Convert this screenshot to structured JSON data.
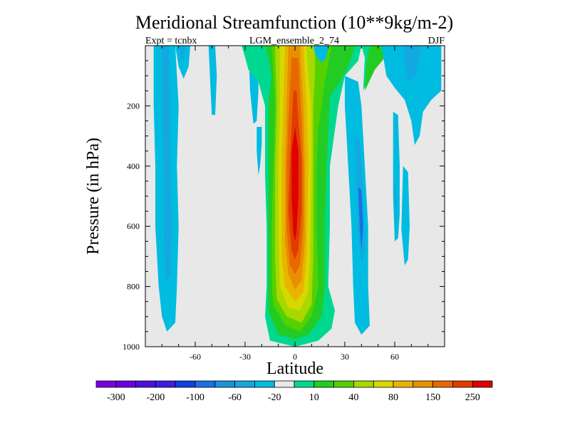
{
  "chart_data": {
    "type": "heatmap",
    "title": "Meridional Streamfunction (10**9kg/m-2)",
    "subtitle_left": "Expt = tcnbx",
    "subtitle_center": "LGM_ensemble_2_74",
    "subtitle_right": "DJF",
    "xlabel": "Latitude",
    "ylabel": "Pressure (in hPa)",
    "xlim": [
      -90,
      90
    ],
    "ylim": [
      0,
      1000
    ],
    "y_inverted": true,
    "x_ticks": [
      -60,
      -30,
      0,
      30,
      60
    ],
    "x_tick_labels": [
      "-60",
      "-30",
      "0",
      "30",
      "60"
    ],
    "y_ticks": [
      200,
      400,
      600,
      800,
      1000
    ],
    "y_tick_labels": [
      "200",
      "400",
      "600",
      "800",
      "1000"
    ],
    "colorbar": {
      "colors": [
        "#7b00e0",
        "#6a00e6",
        "#4d10e0",
        "#3a20e0",
        "#1040e0",
        "#1a70e0",
        "#1f90dc",
        "#14a8e0",
        "#00bce0",
        "#e8e8e8",
        "#00d890",
        "#22cc22",
        "#55d000",
        "#a8d800",
        "#d8d800",
        "#e8b400",
        "#e89000",
        "#e86800",
        "#e03c00",
        "#e00000"
      ],
      "labels": [
        "-300",
        "-200",
        "-100",
        "-60",
        "-20",
        "10",
        "40",
        "80",
        "150",
        "250"
      ]
    },
    "regions": [
      {
        "name": "sh-cell-outer",
        "level": -20,
        "color": "#00bce0",
        "points": [
          [
            -85,
            0
          ],
          [
            -72,
            0
          ],
          [
            -70,
            200
          ],
          [
            -71,
            400
          ],
          [
            -70,
            600
          ],
          [
            -71,
            800
          ],
          [
            -72,
            920
          ],
          [
            -77,
            950
          ],
          [
            -80,
            900
          ],
          [
            -82,
            800
          ],
          [
            -84,
            600
          ],
          [
            -84,
            400
          ],
          [
            -85,
            200
          ]
        ]
      },
      {
        "name": "sh-cell-inner",
        "level": -60,
        "color": "#14a8e0",
        "points": [
          [
            -80,
            0
          ],
          [
            -76,
            0
          ],
          [
            -75,
            200
          ],
          [
            -75,
            400
          ],
          [
            -74,
            600
          ],
          [
            -75,
            760
          ],
          [
            -78,
            780
          ],
          [
            -79,
            600
          ],
          [
            -79,
            400
          ],
          [
            -80,
            200
          ]
        ]
      },
      {
        "name": "sh-upper-cell",
        "level": -20,
        "color": "#00bce0",
        "points": [
          [
            -72,
            0
          ],
          [
            -63,
            0
          ],
          [
            -64,
            70
          ],
          [
            -67,
            110
          ],
          [
            -70,
            70
          ]
        ]
      },
      {
        "name": "sh-upper-cell-inner",
        "level": -60,
        "color": "#14a8e0",
        "points": [
          [
            -70,
            0
          ],
          [
            -66,
            0
          ],
          [
            -67,
            45
          ],
          [
            -69,
            45
          ]
        ]
      },
      {
        "name": "sh-thin-cell",
        "level": -20,
        "color": "#00bce0",
        "points": [
          [
            -52,
            0
          ],
          [
            -48,
            0
          ],
          [
            -47,
            100
          ],
          [
            -48,
            230
          ],
          [
            -50,
            230
          ],
          [
            -51,
            120
          ]
        ]
      },
      {
        "name": "sh-mid-cell",
        "level": -20,
        "color": "#00bce0",
        "points": [
          [
            -28,
            0
          ],
          [
            -22,
            0
          ],
          [
            -22,
            150
          ],
          [
            -23,
            250
          ],
          [
            -25,
            260
          ],
          [
            -27,
            150
          ]
        ]
      },
      {
        "name": "sh-deep-cell",
        "level": -20,
        "color": "#00bce0",
        "points": [
          [
            -23,
            270
          ],
          [
            -20,
            270
          ],
          [
            -20,
            330
          ],
          [
            -21,
            400
          ],
          [
            -22,
            430
          ],
          [
            -23,
            350
          ]
        ]
      },
      {
        "name": "hadley-10",
        "level": 10,
        "color": "#00d890",
        "points": [
          [
            -32,
            0
          ],
          [
            40,
            0
          ],
          [
            38,
            50
          ],
          [
            30,
            100
          ],
          [
            26,
            200
          ],
          [
            21,
            400
          ],
          [
            21,
            600
          ],
          [
            20,
            800
          ],
          [
            24,
            880
          ],
          [
            22,
            940
          ],
          [
            14,
            980
          ],
          [
            0,
            1000
          ],
          [
            -15,
            980
          ],
          [
            -18,
            900
          ],
          [
            -17,
            800
          ],
          [
            -17,
            600
          ],
          [
            -18,
            430
          ],
          [
            -18,
            200
          ],
          [
            -22,
            120
          ],
          [
            -28,
            80
          ]
        ]
      },
      {
        "name": "hadley-40",
        "level": 40,
        "color": "#22cc22",
        "points": [
          [
            -18,
            0
          ],
          [
            36,
            0
          ],
          [
            32,
            70
          ],
          [
            27,
            120
          ],
          [
            21,
            170
          ],
          [
            19,
            400
          ],
          [
            18,
            600
          ],
          [
            18,
            800
          ],
          [
            16,
            900
          ],
          [
            8,
            960
          ],
          [
            0,
            975
          ],
          [
            -10,
            960
          ],
          [
            -16,
            880
          ],
          [
            -16,
            780
          ],
          [
            -16,
            600
          ],
          [
            -16,
            430
          ],
          [
            -16,
            200
          ],
          [
            -14,
            100
          ],
          [
            -16,
            40
          ]
        ]
      },
      {
        "name": "hadley-80",
        "level": 80,
        "color": "#55d000",
        "points": [
          [
            -14,
            0
          ],
          [
            22,
            0
          ],
          [
            18,
            120
          ],
          [
            14,
            280
          ],
          [
            13,
            400
          ],
          [
            13,
            600
          ],
          [
            14,
            800
          ],
          [
            10,
            900
          ],
          [
            3,
            950
          ],
          [
            -6,
            930
          ],
          [
            -13,
            860
          ],
          [
            -14,
            800
          ],
          [
            -14,
            600
          ],
          [
            -13,
            400
          ],
          [
            -12,
            200
          ]
        ]
      },
      {
        "name": "hadley-120",
        "level": 120,
        "color": "#a8d800",
        "points": [
          [
            -12,
            0
          ],
          [
            12,
            0
          ],
          [
            12,
            100
          ],
          [
            11,
            200
          ],
          [
            11,
            400
          ],
          [
            11,
            700
          ],
          [
            10,
            860
          ],
          [
            4,
            920
          ],
          [
            -5,
            900
          ],
          [
            -11,
            840
          ],
          [
            -12,
            700
          ],
          [
            -12,
            400
          ],
          [
            -11,
            200
          ]
        ]
      },
      {
        "name": "hadley-150",
        "level": 150,
        "color": "#d8d800",
        "points": [
          [
            -9,
            0
          ],
          [
            7,
            0
          ],
          [
            8,
            100
          ],
          [
            10,
            200
          ],
          [
            10,
            400
          ],
          [
            9,
            700
          ],
          [
            8,
            820
          ],
          [
            3,
            880
          ],
          [
            -4,
            870
          ],
          [
            -9,
            800
          ],
          [
            -10,
            600
          ],
          [
            -10,
            400
          ],
          [
            -9,
            200
          ]
        ]
      },
      {
        "name": "hadley-180",
        "level": 180,
        "color": "#e8b400",
        "points": [
          [
            -6,
            0
          ],
          [
            5,
            0
          ],
          [
            6,
            100
          ],
          [
            7,
            200
          ],
          [
            8,
            400
          ],
          [
            7,
            700
          ],
          [
            5,
            820
          ],
          [
            0,
            850
          ],
          [
            -6,
            800
          ],
          [
            -8,
            700
          ],
          [
            -8,
            400
          ],
          [
            -7,
            200
          ]
        ]
      },
      {
        "name": "hadley-210",
        "level": 210,
        "color": "#e89000",
        "points": [
          [
            -4,
            0
          ],
          [
            3,
            0
          ],
          [
            4,
            100
          ],
          [
            5,
            200
          ],
          [
            6,
            400
          ],
          [
            6,
            650
          ],
          [
            4,
            780
          ],
          [
            0,
            810
          ],
          [
            -4,
            760
          ],
          [
            -6,
            650
          ],
          [
            -6,
            400
          ],
          [
            -5,
            200
          ]
        ]
      },
      {
        "name": "hadley-250",
        "level": 250,
        "color": "#e86800",
        "points": [
          [
            -2,
            40
          ],
          [
            2,
            40
          ],
          [
            3,
            150
          ],
          [
            4,
            250
          ],
          [
            5,
            400
          ],
          [
            5,
            600
          ],
          [
            3,
            730
          ],
          [
            0,
            760
          ],
          [
            -3,
            730
          ],
          [
            -5,
            600
          ],
          [
            -5,
            400
          ],
          [
            -4,
            250
          ]
        ]
      },
      {
        "name": "hadley-280",
        "level": 280,
        "color": "#e03c00",
        "points": [
          [
            -1,
            150
          ],
          [
            1,
            150
          ],
          [
            2,
            250
          ],
          [
            4,
            380
          ],
          [
            4,
            550
          ],
          [
            2,
            680
          ],
          [
            0,
            710
          ],
          [
            -2,
            680
          ],
          [
            -4,
            550
          ],
          [
            -3,
            380
          ]
        ]
      },
      {
        "name": "hadley-core",
        "level": 300,
        "color": "#e00000",
        "points": [
          [
            0,
            270
          ],
          [
            2,
            350
          ],
          [
            2,
            500
          ],
          [
            1,
            620
          ],
          [
            0,
            650
          ],
          [
            -1,
            620
          ],
          [
            -2,
            500
          ],
          [
            -2,
            350
          ]
        ]
      },
      {
        "name": "nh-upper-cell",
        "level": 10,
        "color": "#00d890",
        "points": [
          [
            40,
            0
          ],
          [
            60,
            0
          ],
          [
            50,
            60
          ],
          [
            45,
            100
          ],
          [
            41,
            150
          ],
          [
            42,
            40
          ]
        ]
      },
      {
        "name": "nh-upper-cell-green",
        "level": 40,
        "color": "#22cc22",
        "points": [
          [
            45,
            0
          ],
          [
            60,
            0
          ],
          [
            48,
            80
          ],
          [
            42,
            150
          ],
          [
            43,
            60
          ]
        ]
      },
      {
        "name": "nh-cell-outer",
        "level": -20,
        "color": "#00bce0",
        "points": [
          [
            30,
            100
          ],
          [
            38,
            120
          ],
          [
            40,
            200
          ],
          [
            42,
            400
          ],
          [
            44,
            600
          ],
          [
            44,
            800
          ],
          [
            45,
            930
          ],
          [
            40,
            960
          ],
          [
            36,
            920
          ],
          [
            35,
            800
          ],
          [
            34,
            600
          ],
          [
            32,
            400
          ],
          [
            30,
            200
          ]
        ]
      },
      {
        "name": "nh-cell-inner",
        "level": -60,
        "color": "#14a8e0",
        "points": [
          [
            36,
            300
          ],
          [
            39,
            320
          ],
          [
            41,
            500
          ],
          [
            42,
            680
          ],
          [
            40,
            720
          ],
          [
            38,
            620
          ],
          [
            37,
            450
          ]
        ]
      },
      {
        "name": "nh-cell-innermost",
        "level": -100,
        "color": "#1a70e0",
        "points": [
          [
            38,
            470
          ],
          [
            40,
            480
          ],
          [
            41,
            600
          ],
          [
            40,
            680
          ],
          [
            39,
            610
          ]
        ]
      },
      {
        "name": "nh-high-cell",
        "level": -20,
        "color": "#00bce0",
        "points": [
          [
            52,
            0
          ],
          [
            88,
            0
          ],
          [
            88,
            150
          ],
          [
            82,
            180
          ],
          [
            77,
            220
          ],
          [
            75,
            300
          ],
          [
            72,
            330
          ],
          [
            70,
            250
          ],
          [
            66,
            180
          ],
          [
            60,
            140
          ],
          [
            55,
            100
          ]
        ]
      },
      {
        "name": "nh-high-cell-inner",
        "level": -60,
        "color": "#14a8e0",
        "points": [
          [
            65,
            0
          ],
          [
            76,
            0
          ],
          [
            73,
            90
          ],
          [
            68,
            120
          ],
          [
            66,
            60
          ]
        ]
      },
      {
        "name": "nh-mid-cell",
        "level": -20,
        "color": "#00bce0",
        "points": [
          [
            59,
            220
          ],
          [
            62,
            230
          ],
          [
            63,
            400
          ],
          [
            63,
            560
          ],
          [
            62,
            640
          ],
          [
            60,
            650
          ],
          [
            59,
            500
          ]
        ]
      },
      {
        "name": "nh-mid-cell-inner",
        "level": -60,
        "color": "#14a8e0",
        "points": [
          [
            60,
            450
          ],
          [
            61,
            460
          ],
          [
            61,
            580
          ],
          [
            60,
            600
          ]
        ]
      },
      {
        "name": "nh-small-cell",
        "level": -20,
        "color": "#00bce0",
        "points": [
          [
            65,
            400
          ],
          [
            68,
            420
          ],
          [
            69,
            600
          ],
          [
            68,
            710
          ],
          [
            66,
            730
          ],
          [
            64,
            610
          ]
        ]
      },
      {
        "name": "eq-upper-cell",
        "level": -20,
        "color": "#00bce0",
        "points": [
          [
            11,
            0
          ],
          [
            20,
            0
          ],
          [
            19,
            40
          ],
          [
            16,
            55
          ],
          [
            14,
            45
          ],
          [
            12,
            25
          ]
        ]
      }
    ]
  }
}
